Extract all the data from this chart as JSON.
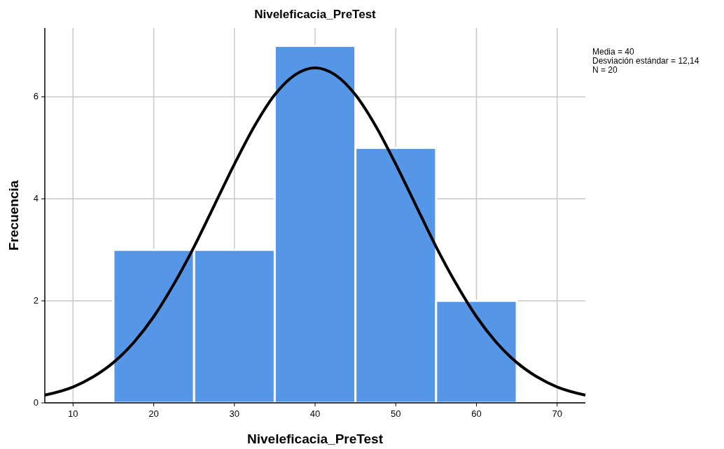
{
  "chart_data": {
    "type": "histogram",
    "title": "Niveleficacia_PreTest",
    "xlabel": "Niveleficacia_PreTest",
    "ylabel": "Frecuencia",
    "series": [
      {
        "bins": [
          15,
          25,
          35,
          45,
          55,
          65
        ],
        "values": [
          3,
          3,
          7,
          5,
          2
        ],
        "color": "#5596e6"
      },
      {
        "type": "line",
        "color": "#000000",
        "x": [
          6.5,
          10,
          12.5,
          15,
          17.5,
          20,
          22.5,
          25,
          27.5,
          30,
          32.5,
          35,
          37.5,
          40,
          42.5,
          45,
          47.5,
          50,
          52.5,
          55,
          57.5,
          60,
          62.5,
          65,
          67.5,
          70,
          73.5
        ],
        "values": [
          0.15,
          0.31,
          0.51,
          0.79,
          1.18,
          1.69,
          2.33,
          3.06,
          3.87,
          4.68,
          5.43,
          6.04,
          6.43,
          6.57,
          6.43,
          6.04,
          5.43,
          4.68,
          3.87,
          3.06,
          2.33,
          1.69,
          1.18,
          0.79,
          0.51,
          0.31,
          0.15
        ]
      }
    ],
    "xlim": [
      6.5,
      73.5
    ],
    "xticks": [
      10,
      20,
      30,
      40,
      50,
      60,
      70
    ],
    "ylim": [
      0,
      7.35
    ],
    "yticks": [
      0,
      2,
      4,
      6
    ],
    "grid": true,
    "line_style": "solid",
    "marker": "none",
    "annotations": [
      "Media = 40",
      "Desviación estándar = 12,14",
      "N = 20"
    ]
  }
}
